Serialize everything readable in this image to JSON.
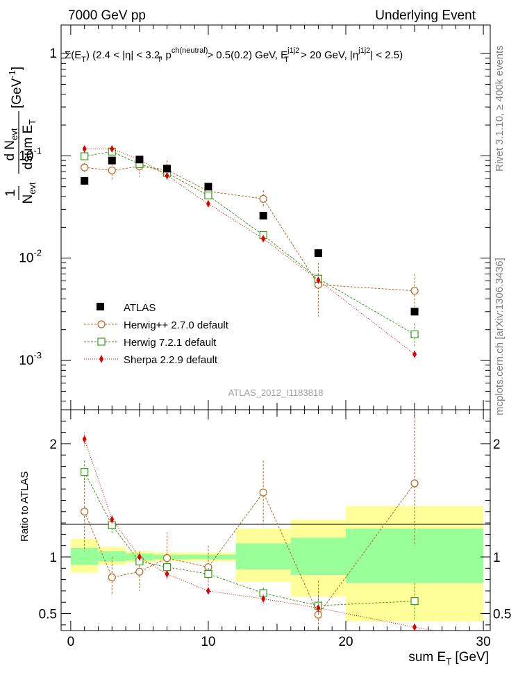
{
  "header": {
    "left": "7000 GeV pp",
    "right": "Underlying Event"
  },
  "side_labels": {
    "top": "Rivet 3.1.10, ≥ 400k events",
    "bottom": "mcplots.cern.ch [arXiv:1306.3436]"
  },
  "watermark": "ATLAS_2012_I1183818",
  "colors": {
    "atlas": "#000000",
    "herwigpp": "#b8641e",
    "herwig7": "#3a9a1a",
    "sherpa": "#e00000",
    "band_inner": "#99ff99",
    "band_outer": "#ffff99"
  },
  "chart_data": [
    {
      "type": "scatter",
      "panel": "main",
      "title": "Σ(E_T) (2.4 < |η| < 3.2, p_T^ch(neutral) > 0.5(0.2) GeV, E_T^j1j2 > 20 GeV, |η^j1j2| < 2.5)",
      "title_parts": {
        "s1": "Σ(E",
        "s2": "T",
        "s3": ") (2.4 < |η| < 3.2, p",
        "s4": "ch(neutral)",
        "s5": "T",
        "s6": " > 0.5(0.2) GeV, E",
        "s7": "j1j2",
        "s8": "T",
        "s9": " > 20 GeV, |η",
        "s10": "j1j2",
        "s11": "| < 2.5)"
      },
      "ylabel": "1/N_evt dN_evt/dsum E_T [GeV^-1]",
      "ylabel_parts": {
        "one": "1",
        "num_a": "d N",
        "num_b": "evt",
        "den_n": "N",
        "den_evt": "evt",
        "den_d": "dsum E",
        "den_t": "T",
        "unit_a": "[GeV",
        "unit_b": "-1",
        "unit_c": "]"
      },
      "yscale": "log",
      "ylim": [
        0.00033,
        1.9
      ],
      "xlim": [
        -0.7,
        30.5
      ],
      "y_ticks": [
        {
          "value": 0.001,
          "base": "10",
          "exp": "-3"
        },
        {
          "value": 0.01,
          "base": "10",
          "exp": "-2"
        },
        {
          "value": 0.1,
          "base": "10",
          "exp": "-1"
        },
        {
          "value": 1,
          "base": "1",
          "exp": ""
        }
      ],
      "legend": {
        "placement": "lower-left",
        "entries": [
          "ATLAS",
          "Herwig++ 2.7.0 default",
          "Herwig 7.2.1 default",
          "Sherpa 2.2.9 default"
        ]
      },
      "series": [
        {
          "name": "ATLAS",
          "style": "square-filled",
          "x": [
            1,
            3,
            5,
            7,
            10,
            14,
            18,
            25
          ],
          "y": [
            0.057,
            0.09,
            0.092,
            0.075,
            0.05,
            0.026,
            0.0112,
            0.003
          ]
        },
        {
          "name": "Herwig++ 2.7.0 default",
          "style": "circle-open",
          "x": [
            1,
            3,
            5,
            7,
            10,
            14,
            18,
            25
          ],
          "y": [
            0.077,
            0.072,
            0.079,
            0.073,
            0.045,
            0.038,
            0.0055,
            0.0048
          ],
          "err_lo": [
            0.069,
            0.058,
            0.062,
            0.058,
            0.036,
            0.031,
            0.0027,
            0.0032
          ],
          "err_hi": [
            0.085,
            0.084,
            0.095,
            0.09,
            0.054,
            0.046,
            0.009,
            0.007
          ]
        },
        {
          "name": "Herwig 7.2.1 default",
          "style": "square-open",
          "x": [
            1,
            3,
            5,
            7,
            10,
            14,
            18,
            25
          ],
          "y": [
            0.099,
            0.11,
            0.083,
            0.068,
            0.041,
            0.0168,
            0.0063,
            0.0018
          ],
          "err_lo": [
            0.095,
            0.104,
            0.078,
            0.064,
            0.038,
            0.0155,
            0.0056,
            0.00135
          ],
          "err_hi": [
            0.104,
            0.116,
            0.089,
            0.073,
            0.044,
            0.018,
            0.0071,
            0.0023
          ]
        },
        {
          "name": "Sherpa 2.2.9 default",
          "style": "diamond-filled",
          "x": [
            1,
            3,
            5,
            7,
            10,
            14,
            18,
            25
          ],
          "y": [
            0.117,
            0.117,
            0.092,
            0.064,
            0.034,
            0.0155,
            0.0061,
            0.00115
          ],
          "err_lo": [
            0.114,
            0.114,
            0.089,
            0.062,
            0.033,
            0.0148,
            0.0057,
            0.00105
          ],
          "err_hi": [
            0.12,
            0.12,
            0.095,
            0.066,
            0.035,
            0.0162,
            0.0065,
            0.00125
          ]
        }
      ]
    },
    {
      "type": "scatter",
      "panel": "ratio",
      "ylabel": "Ratio to ATLAS",
      "xlabel": "sum E_T [GeV]",
      "xlabel_parts": {
        "a": "sum E",
        "b": "T",
        "c": " [GeV]"
      },
      "ylim": [
        0.35,
        2.3
      ],
      "xlim": [
        -0.7,
        30.5
      ],
      "x_ticks": [
        0,
        10,
        20,
        30
      ],
      "y_ticks": [
        0.5,
        1,
        2
      ],
      "bands": {
        "edges": [
          0,
          2,
          4,
          6,
          8,
          12,
          16,
          20,
          30
        ],
        "inner_lo": [
          0.93,
          0.96,
          0.97,
          0.98,
          0.98,
          0.89,
          0.84,
          0.77
        ],
        "inner_hi": [
          1.08,
          1.05,
          1.03,
          1.02,
          1.02,
          1.12,
          1.17,
          1.25
        ],
        "outer_lo": [
          0.86,
          0.93,
          0.95,
          0.96,
          0.96,
          0.78,
          0.65,
          0.43
        ],
        "outer_hi": [
          1.16,
          1.09,
          1.05,
          1.04,
          1.04,
          1.25,
          1.33,
          1.45
        ]
      },
      "series": [
        {
          "name": "Herwig++ 2.7.0 default",
          "style": "circle-open",
          "x": [
            1,
            3,
            5,
            7,
            10,
            14,
            18,
            25
          ],
          "y": [
            1.4,
            0.82,
            0.87,
            0.99,
            0.91,
            1.57,
            0.49,
            1.65
          ],
          "err_lo": [
            1.05,
            0.66,
            0.7,
            0.8,
            0.74,
            1.28,
            0.34,
            1.1
          ],
          "err_hi": [
            1.7,
            1.0,
            1.05,
            1.22,
            1.1,
            1.85,
            0.79,
            2.35
          ]
        },
        {
          "name": "Herwig 7.2.1 default",
          "style": "square-open",
          "x": [
            1,
            3,
            5,
            7,
            10,
            14,
            18,
            25
          ],
          "y": [
            1.75,
            1.28,
            0.96,
            0.91,
            0.85,
            0.68,
            0.57,
            0.61
          ],
          "err_lo": [
            1.66,
            1.21,
            0.91,
            0.86,
            0.8,
            0.63,
            0.49,
            0.45
          ],
          "err_hi": [
            1.85,
            1.35,
            1.01,
            0.96,
            0.9,
            0.73,
            0.66,
            0.77
          ]
        },
        {
          "name": "Sherpa 2.2.9 default",
          "style": "diamond-filled",
          "x": [
            1,
            3,
            5,
            7,
            10,
            14,
            18,
            25
          ],
          "y": [
            2.04,
            1.33,
            1.0,
            0.85,
            0.7,
            0.63,
            0.55,
            0.38
          ],
          "err_lo": [
            1.98,
            1.29,
            0.97,
            0.82,
            0.67,
            0.59,
            0.51,
            0.35
          ],
          "err_hi": [
            2.1,
            1.37,
            1.03,
            0.88,
            0.73,
            0.67,
            0.59,
            0.41
          ],
          "extend_to": {
            "x": 30,
            "y": 0.27
          }
        }
      ]
    }
  ]
}
